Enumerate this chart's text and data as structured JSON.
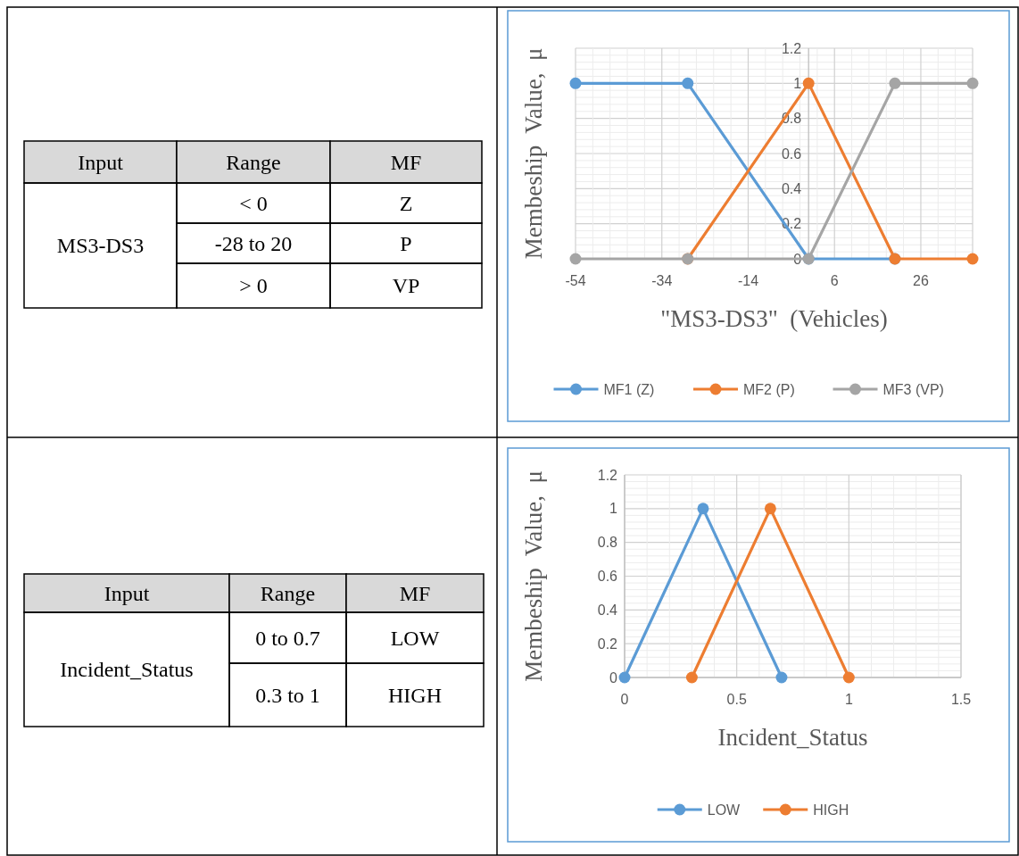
{
  "chart_data": [
    {
      "type": "other",
      "annotations": [
        "Input",
        "Range",
        "MF",
        "MS3-DS3",
        "< 0",
        "Z",
        "-28 to 20",
        "P",
        "> 0",
        "VP"
      ]
    },
    {
      "type": "line",
      "xlabel": "\"MS3-DS3\"  (Vehicles)",
      "ylabel": "Membeship  Value,  μ",
      "xlim": [
        -54,
        38
      ],
      "xticks": [
        -54,
        -34,
        -14,
        6,
        26
      ],
      "ylim": [
        0,
        1.2
      ],
      "yticks": [
        0,
        0.2,
        0.4,
        0.6,
        0.8,
        1,
        1.2
      ],
      "grid": true,
      "legend": "bottom",
      "marker": "circle",
      "line_style": "solid",
      "series": [
        {
          "name": "MF1 (Z)",
          "color": "#5b9bd5",
          "x": [
            -54,
            -28,
            0,
            20
          ],
          "values": [
            1,
            1,
            0,
            0
          ]
        },
        {
          "name": "MF2 (P)",
          "color": "#ed7d31",
          "x": [
            -28,
            0,
            20,
            38
          ],
          "values": [
            0,
            1,
            0,
            0
          ]
        },
        {
          "name": "MF3 (VP)",
          "color": "#a5a5a5",
          "x": [
            -54,
            -28,
            0,
            20,
            38
          ],
          "values": [
            0,
            0,
            0,
            1,
            1
          ]
        }
      ]
    },
    {
      "type": "other",
      "annotations": [
        "Input",
        "Range",
        "MF",
        "Incident_Status",
        "0 to 0.7",
        "LOW",
        "0.3 to 1",
        "HIGH"
      ]
    },
    {
      "type": "line",
      "xlabel": "Incident_Status",
      "ylabel": "Membeship  Value,  μ",
      "xlim": [
        0,
        1.5
      ],
      "xticks": [
        0,
        0.5,
        1,
        1.5
      ],
      "ylim": [
        0,
        1.2
      ],
      "yticks": [
        0,
        0.2,
        0.4,
        0.6,
        0.8,
        1,
        1.2
      ],
      "grid": true,
      "legend": "bottom",
      "marker": "circle",
      "line_style": "solid",
      "series": [
        {
          "name": "LOW",
          "color": "#5b9bd5",
          "x": [
            0,
            0.35,
            0.7
          ],
          "values": [
            0,
            1,
            0
          ]
        },
        {
          "name": "HIGH",
          "color": "#ed7d31",
          "x": [
            0.3,
            0.65,
            1
          ],
          "values": [
            0,
            1,
            0
          ]
        }
      ]
    }
  ]
}
